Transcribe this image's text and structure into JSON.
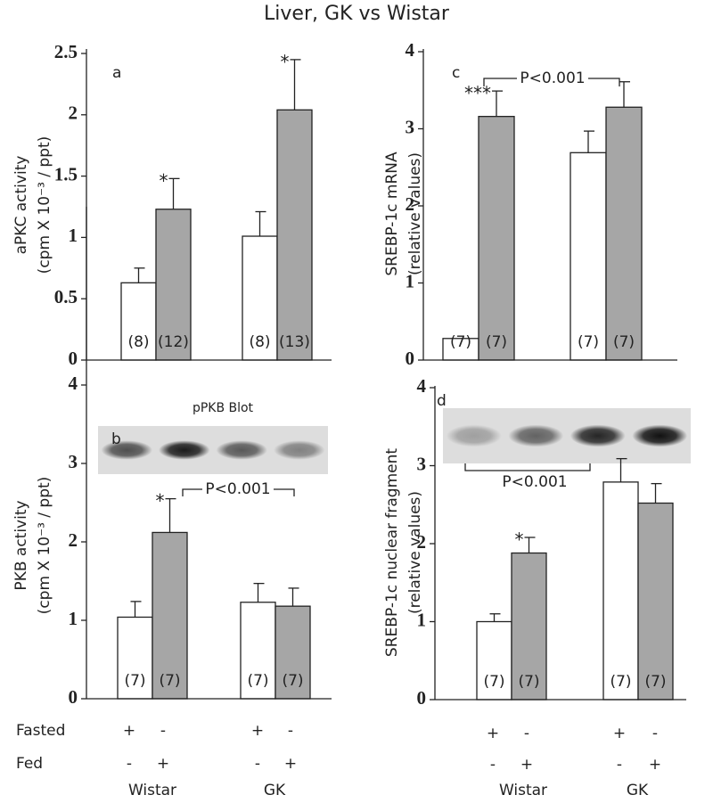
{
  "title": "Liver, GK vs Wistar",
  "conditions": [
    {
      "label": "Fasted",
      "marks": [
        "+",
        "-",
        "+",
        "-"
      ]
    },
    {
      "label": "Fed",
      "marks": [
        "-",
        "+",
        "-",
        "+"
      ]
    }
  ],
  "groups": [
    "Wistar",
    "GK"
  ],
  "chart_data": [
    {
      "type": "bar",
      "panel": "a",
      "ylabel": [
        "aPKC activity",
        "(cpm X 10⁻³ / ppt)"
      ],
      "ylim": [
        0,
        2.5
      ],
      "yticks": [
        0,
        0.5,
        1,
        1.5,
        2,
        2.5
      ],
      "values": [
        0.63,
        1.23,
        1.01,
        2.04
      ],
      "errors": [
        0.12,
        0.25,
        0.2,
        0.41
      ],
      "colors": [
        "#ffffff",
        "#a6a6a6",
        "#ffffff",
        "#a6a6a6"
      ],
      "n_labels": [
        "(8)",
        "(12)",
        "(8)",
        "(13)"
      ],
      "annotations": [
        {
          "index": 1,
          "label": "*"
        },
        {
          "index": 3,
          "label": "*"
        }
      ]
    },
    {
      "type": "bar",
      "panel": "b",
      "ylabel": [
        "PKB  activity",
        "(cpm X 10⁻³ / ppt)"
      ],
      "ylim": [
        0,
        4
      ],
      "yticks": [
        0,
        1,
        2,
        3,
        4
      ],
      "values": [
        1.04,
        2.12,
        1.23,
        1.18
      ],
      "errors": [
        0.2,
        0.43,
        0.24,
        0.23
      ],
      "colors": [
        "#ffffff",
        "#a6a6a6",
        "#ffffff",
        "#a6a6a6"
      ],
      "n_labels": [
        "(7)",
        "(7)",
        "(7)",
        "(7)"
      ],
      "annotations": [
        {
          "index": 1,
          "label": "*"
        }
      ],
      "blot_label": "pPKB Blot",
      "bracket_label": "P<0.001"
    },
    {
      "type": "bar",
      "panel": "c",
      "ylabel": [
        "SREBP-1c  mRNA",
        "(relative values)"
      ],
      "ylim": [
        0,
        4
      ],
      "yticks": [
        0,
        1,
        2,
        3,
        4
      ],
      "values": [
        0.28,
        3.16,
        2.69,
        3.28
      ],
      "errors": [
        0,
        0.33,
        0.28,
        0.33
      ],
      "colors": [
        "#ffffff",
        "#a6a6a6",
        "#ffffff",
        "#a6a6a6"
      ],
      "n_labels": [
        "(7)",
        "(7)",
        "(7)",
        "(7)"
      ],
      "annotations": [
        {
          "index": 1,
          "label": "***"
        }
      ],
      "bracket_label": "P<0.001"
    },
    {
      "type": "bar",
      "panel": "d",
      "ylabel": [
        "SREBP-1c  nuclear fragment",
        "(relative values)"
      ],
      "ylim": [
        0,
        4
      ],
      "yticks": [
        0,
        1,
        2,
        3,
        4
      ],
      "values": [
        1.0,
        1.88,
        2.79,
        2.52
      ],
      "errors": [
        0.1,
        0.2,
        0.3,
        0.25
      ],
      "colors": [
        "#ffffff",
        "#a6a6a6",
        "#ffffff",
        "#a6a6a6"
      ],
      "n_labels": [
        "(7)",
        "(7)",
        "(7)",
        "(7)"
      ],
      "annotations": [
        {
          "index": 1,
          "label": "*"
        }
      ],
      "bracket_label": "P<0.001"
    }
  ]
}
